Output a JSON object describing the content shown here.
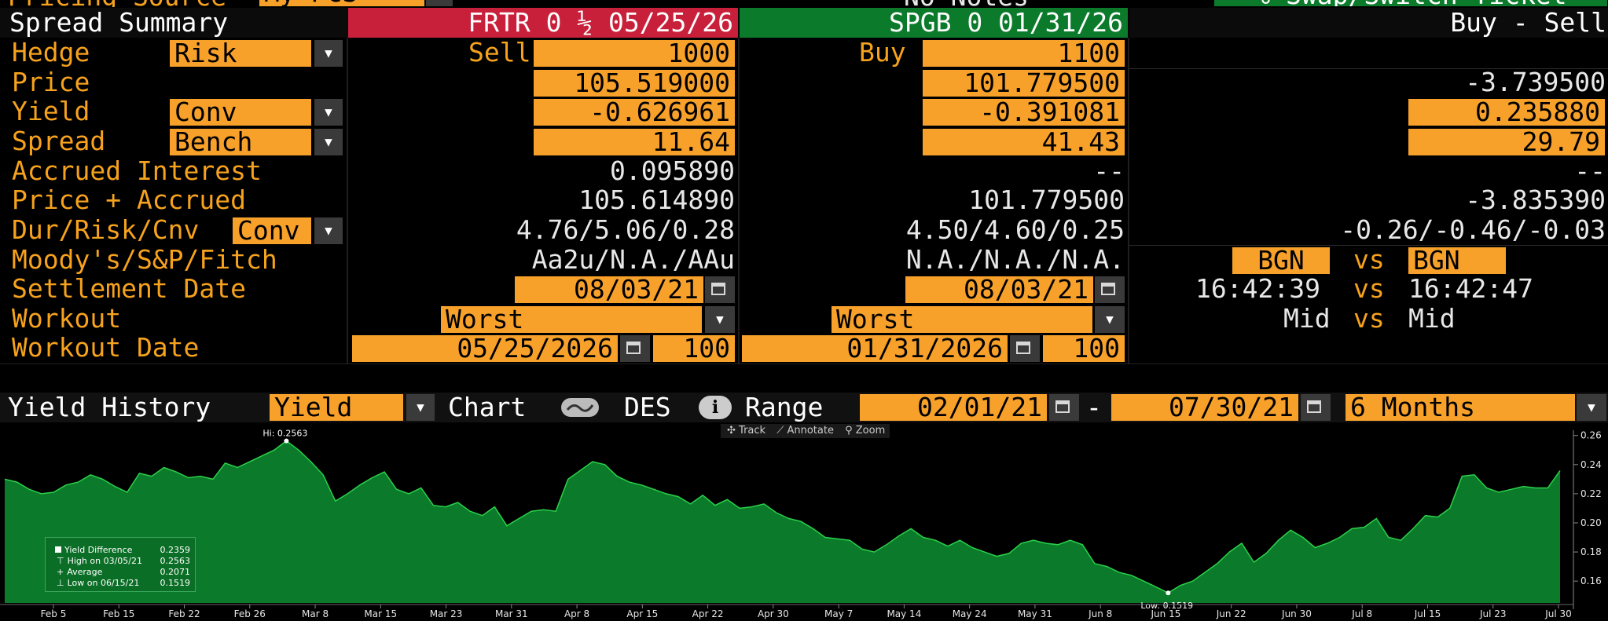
{
  "top_strip": {
    "pricing_source_label": "Pricing Source",
    "pricing_source_value": "My PCS",
    "notes": "No Notes",
    "swap_button": "% Swap/Switch Ticket"
  },
  "header": {
    "title": "Spread Summary",
    "leg1": "FRTR 0 ½ 05/25/26",
    "leg2": "SPGB 0 01/31/26",
    "diff": "Buy - Sell"
  },
  "labels": {
    "hedge": "Hedge",
    "price": "Price",
    "yield": "Yield",
    "spread": "Spread",
    "accrued": "Accrued Interest",
    "price_accrued": "Price + Accrued",
    "dur": "Dur/Risk/Cnv",
    "ratings": "Moody's/S&P/Fitch",
    "settle": "Settlement Date",
    "workout": "Workout",
    "workout_date": "Workout Date"
  },
  "selectors": {
    "hedge": "Risk",
    "yield": "Conv",
    "spread": "Bench",
    "dur": "Conv"
  },
  "leg1": {
    "side": "Sell",
    "qty": "1000",
    "price": "105.519000",
    "yield": "-0.626961",
    "spread": "11.64",
    "accrued": "0.095890",
    "price_accrued": "105.614890",
    "dur": "4.76/5.06/0.28",
    "ratings": "Aa2u/N.A./AAu",
    "settle": "08/03/21",
    "workout": "Worst",
    "workout_date": "05/25/2026",
    "workout_price": "100"
  },
  "leg2": {
    "side": "Buy",
    "qty": "1100",
    "price": "101.779500",
    "yield": "-0.391081",
    "spread": "41.43",
    "accrued": "--",
    "price_accrued": "101.779500",
    "dur": "4.50/4.60/0.25",
    "ratings": "N.A./N.A./N.A.",
    "settle": "08/03/21",
    "workout": "Worst",
    "workout_date": "01/31/2026",
    "workout_price": "100"
  },
  "diff": {
    "price": "-3.739500",
    "yield": "0.235880",
    "spread": "29.79",
    "accrued": "--",
    "price_accrued": "-3.835390",
    "dur": "-0.26/-0.46/-0.03",
    "source1": "BGN",
    "vs": "vs",
    "source2": "BGN",
    "time1": "16:42:39",
    "time2": "16:42:47",
    "side1": "Mid",
    "side2": "Mid"
  },
  "history_bar": {
    "title": "Yield History",
    "field": "Yield",
    "chart": "Chart",
    "des": "DES",
    "range_label": "Range",
    "start": "02/01/21",
    "dash": "-",
    "end": "07/30/21",
    "period": "6 Months"
  },
  "chart_tools": {
    "track": "Track",
    "annotate": "Annotate",
    "zoom": "Zoom"
  },
  "colors": {
    "orange": "#f7a12b",
    "red_header": "#c8203a",
    "green_header": "#0b7a2a",
    "area": "#0b7a2a",
    "area_line": "#2bd14a"
  },
  "chart_data": {
    "type": "area",
    "series": [
      {
        "name": "Yield Difference",
        "values": [
          0.23,
          0.228,
          0.223,
          0.22,
          0.221,
          0.226,
          0.228,
          0.233,
          0.23,
          0.225,
          0.221,
          0.234,
          0.232,
          0.238,
          0.235,
          0.231,
          0.232,
          0.23,
          0.241,
          0.238,
          0.242,
          0.246,
          0.25,
          0.2563,
          0.25,
          0.242,
          0.233,
          0.215,
          0.22,
          0.226,
          0.231,
          0.235,
          0.223,
          0.22,
          0.224,
          0.212,
          0.211,
          0.214,
          0.208,
          0.205,
          0.211,
          0.198,
          0.203,
          0.208,
          0.209,
          0.208,
          0.23,
          0.236,
          0.242,
          0.24,
          0.232,
          0.228,
          0.226,
          0.223,
          0.22,
          0.218,
          0.213,
          0.219,
          0.212,
          0.216,
          0.21,
          0.211,
          0.213,
          0.207,
          0.203,
          0.201,
          0.196,
          0.19,
          0.189,
          0.188,
          0.182,
          0.18,
          0.185,
          0.191,
          0.196,
          0.19,
          0.188,
          0.184,
          0.188,
          0.183,
          0.18,
          0.177,
          0.179,
          0.186,
          0.188,
          0.186,
          0.185,
          0.188,
          0.185,
          0.172,
          0.17,
          0.166,
          0.164,
          0.16,
          0.156,
          0.1519,
          0.157,
          0.16,
          0.166,
          0.172,
          0.18,
          0.186,
          0.173,
          0.179,
          0.188,
          0.195,
          0.19,
          0.183,
          0.186,
          0.19,
          0.196,
          0.197,
          0.203,
          0.19,
          0.188,
          0.196,
          0.205,
          0.204,
          0.21,
          0.232,
          0.233,
          0.224,
          0.221,
          0.223,
          0.225,
          0.224,
          0.224,
          0.2359
        ]
      }
    ],
    "x_ticks": [
      "Feb 5",
      "Feb 15",
      "Feb 22",
      "Feb 26",
      "Mar 8",
      "Mar 15",
      "Mar 23",
      "Mar 31",
      "Apr 8",
      "Apr 15",
      "Apr 22",
      "Apr 30",
      "May 7",
      "May 14",
      "May 24",
      "May 31",
      "Jun 8",
      "Jun 15",
      "Jun 22",
      "Jun 30",
      "Jul 8",
      "Jul 15",
      "Jul 23",
      "Jul 30"
    ],
    "y_ticks": [
      "0.26",
      "0.24",
      "0.22",
      "0.20",
      "0.18",
      "0.16"
    ],
    "ylim": [
      0.145,
      0.262
    ],
    "grid": false,
    "annotations": {
      "high": "Hi: 0.2563",
      "low": "Low: 0.1519"
    },
    "legend": [
      {
        "label": "Yield Difference",
        "value": "0.2359"
      },
      {
        "label": "High on 03/05/21",
        "value": "0.2563"
      },
      {
        "label": "Average",
        "value": "0.2071"
      },
      {
        "label": "Low on 06/15/21",
        "value": "0.1519"
      }
    ]
  }
}
